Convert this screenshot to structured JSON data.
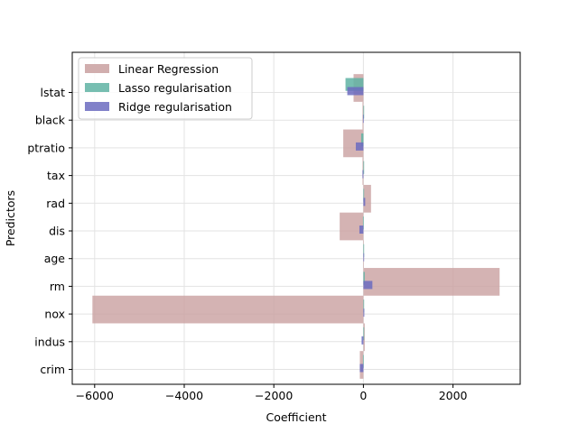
{
  "chart_data": {
    "type": "bar",
    "orientation": "horizontal",
    "title": "",
    "xlabel": "Coefficient",
    "ylabel": "Predictors",
    "xlim": [
      -6500,
      3500
    ],
    "x_ticks": [
      -6000,
      -4000,
      -2000,
      0,
      2000
    ],
    "x_tick_labels": [
      "−6000",
      "−4000",
      "−2000",
      "0",
      "2000"
    ],
    "categories": [
      "crim",
      "indus",
      "nox",
      "rm",
      "age",
      "dis",
      "rad",
      "tax",
      "ptratio",
      "black",
      "lstat"
    ],
    "grid": true,
    "legend_position": "top-left",
    "series": [
      {
        "name": "Linear Regression",
        "color": "#c9a0a0",
        "values": [
          -80,
          30,
          -6050,
          3040,
          10,
          -530,
          170,
          -20,
          -450,
          -20,
          -220
        ]
      },
      {
        "name": "Lasso regularisation",
        "color": "#5fb3a3",
        "values": [
          -10,
          0,
          0,
          30,
          0,
          -10,
          0,
          0,
          -50,
          0,
          -400
        ]
      },
      {
        "name": "Ridge regularisation",
        "color": "#6b6bbf",
        "values": [
          -80,
          -40,
          20,
          200,
          0,
          -90,
          40,
          -20,
          -170,
          -10,
          -360
        ]
      }
    ]
  }
}
